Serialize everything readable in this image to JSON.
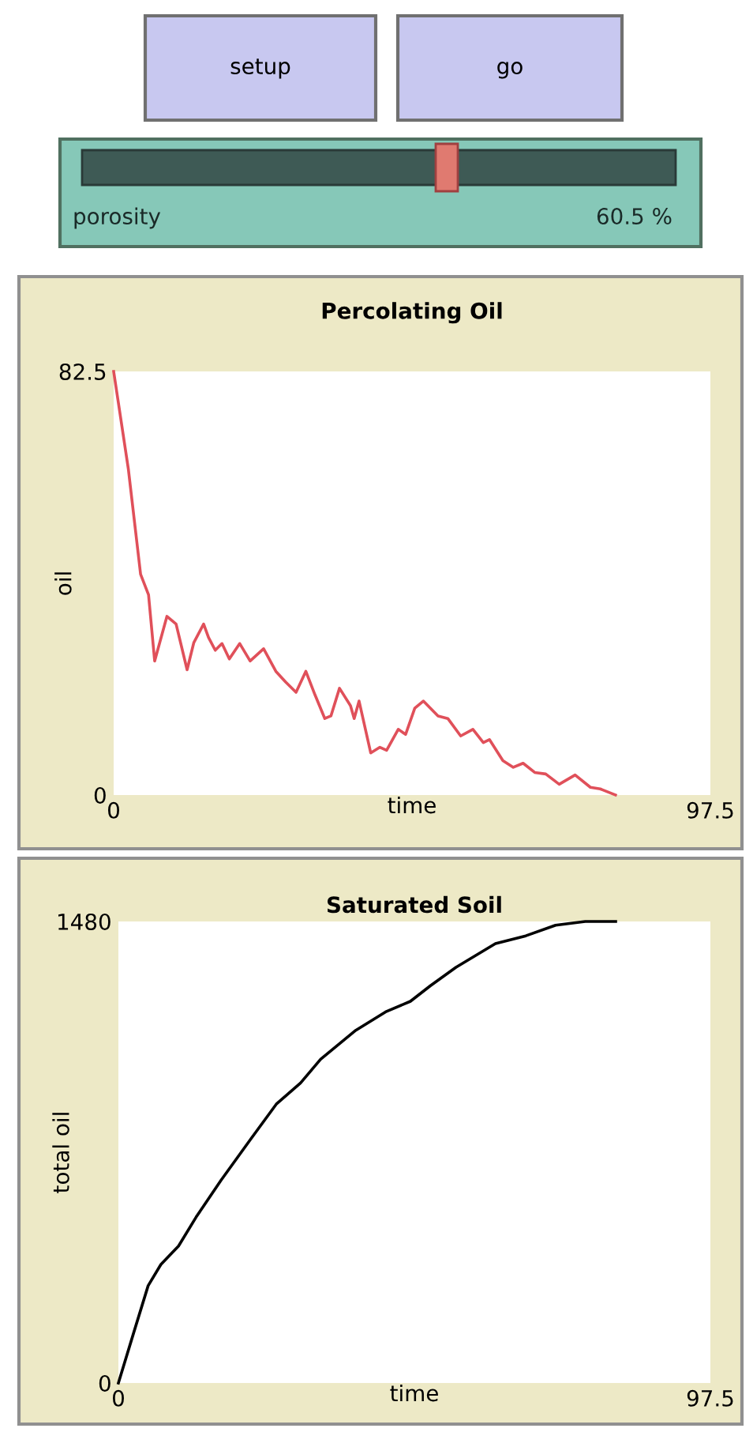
{
  "chart_data": [
    {
      "type": "other",
      "annotations": [
        "setup",
        "go",
        "porosity",
        "60.5 %"
      ]
    },
    {
      "type": "line",
      "title": "Percolating Oil",
      "xlabel": "time",
      "ylabel": "oil",
      "xlim": [
        0,
        97.5
      ],
      "ylim": [
        0,
        82.5
      ],
      "xticks": [
        0,
        97.5
      ],
      "yticks": [
        0,
        82.5
      ],
      "grid": false,
      "series": [
        {
          "color": "#e0505a",
          "x": [
            0,
            2.4,
            4.4,
            5.7,
            6.7,
            8.7,
            10.2,
            12.0,
            13.1,
            14.7,
            15.5,
            16.6,
            17.7,
            18.9,
            20.6,
            22.3,
            24.5,
            26.5,
            28.1,
            29.8,
            31.4,
            32.9,
            34.5,
            35.5,
            36.9,
            38.7,
            39.3,
            40.1,
            42.0,
            43.5,
            44.6,
            46.5,
            47.7,
            49.2,
            50.6,
            53.0,
            54.6,
            56.7,
            58.7,
            60.4,
            61.4,
            63.6,
            65.3,
            66.9,
            68.8,
            70.6,
            72.8,
            75.4,
            77.9,
            79.5,
            82.0
          ],
          "values": [
            82.5,
            63.5,
            43.0,
            39,
            26.1,
            34.8,
            33.3,
            24.4,
            29.7,
            33.3,
            30.7,
            28.2,
            29.5,
            26.5,
            29.5,
            26.1,
            28.5,
            24.1,
            22.0,
            20.0,
            24.1,
            19.5,
            14.9,
            15.4,
            20.8,
            17.4,
            14.9,
            18.3,
            8.2,
            9.3,
            8.7,
            12.8,
            11.8,
            16.9,
            18.3,
            15.4,
            14.9,
            11.5,
            12.8,
            10.2,
            10.8,
            6.7,
            5.4,
            6.2,
            4.4,
            4.1,
            2.1,
            3.9,
            1.5,
            1.2,
            0
          ]
        }
      ]
    },
    {
      "type": "line",
      "title": "Saturated Soil",
      "xlabel": "time",
      "ylabel": "total oil",
      "xlim": [
        0,
        97.5
      ],
      "ylim": [
        0,
        1480
      ],
      "xticks": [
        0,
        97.5
      ],
      "yticks": [
        0,
        1480
      ],
      "grid": false,
      "series": [
        {
          "color": "#000000",
          "x": [
            0,
            2.5,
            4.9,
            7.0,
            9.9,
            12.8,
            16.9,
            21.9,
            26.0,
            30.0,
            33.3,
            39.1,
            44.0,
            48.1,
            51.4,
            55.6,
            62.1,
            67.1,
            72.0,
            76.9,
            81.9
          ],
          "values": [
            0,
            160,
            312,
            380,
            439,
            532,
            650,
            785,
            894,
            962,
            1038,
            1131,
            1190,
            1224,
            1274,
            1333,
            1409,
            1434,
            1468,
            1480,
            1480
          ]
        }
      ]
    }
  ]
}
